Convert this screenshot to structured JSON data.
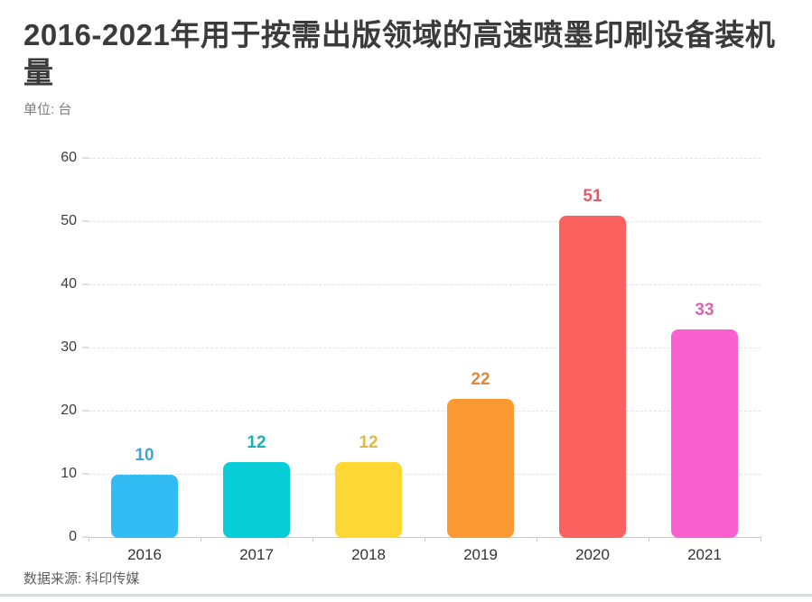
{
  "page": {
    "title": "2016-2021年用于按需出版领域的高速喷墨印刷设备装机量",
    "unit_label": "单位: 台",
    "source_label": "数据来源: 科印传媒"
  },
  "chart_data": {
    "type": "bar",
    "title": "2016-2021年用于按需出版领域的高速喷墨印刷设备装机量",
    "unit": "台",
    "categories": [
      "2016",
      "2017",
      "2018",
      "2019",
      "2020",
      "2021"
    ],
    "values": [
      10,
      12,
      12,
      22,
      51,
      33
    ],
    "bar_colors": [
      "#33bbf3",
      "#06cdd6",
      "#fdd835",
      "#fb9a32",
      "#fb615e",
      "#fb60cf"
    ],
    "value_label_colors": [
      "#3fa3d4",
      "#1cb0b5",
      "#dfb94b",
      "#e0883b",
      "#d9606a",
      "#d964b4"
    ],
    "xlabel": "",
    "ylabel": "",
    "ylim": [
      0,
      60
    ],
    "y_ticks": [
      0,
      10,
      20,
      30,
      40,
      50,
      60
    ],
    "grid": "horizontal-dashed",
    "legend_position": "none",
    "source": "数据来源: 科印传媒"
  }
}
